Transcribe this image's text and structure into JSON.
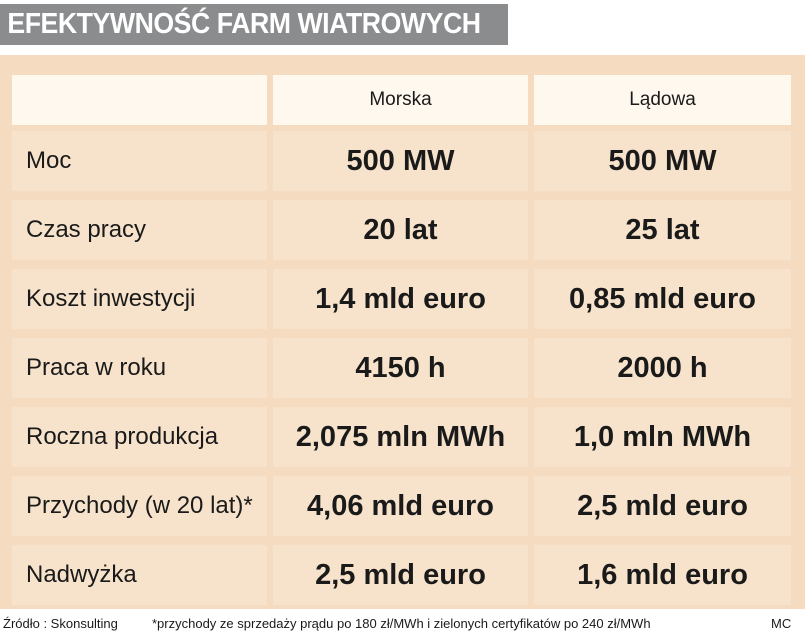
{
  "title": "EFEKTYWNOŚĆ FARM WIATROWYCH",
  "columns": [
    "",
    "Morska",
    "Lądowa"
  ],
  "rows": [
    {
      "label": "Moc",
      "morska": "500 MW",
      "ladowa": "500 MW"
    },
    {
      "label": "Czas pracy",
      "morska": "20 lat",
      "ladowa": "25 lat"
    },
    {
      "label": "Koszt inwestycji",
      "morska": "1,4 mld euro",
      "ladowa": "0,85 mld euro"
    },
    {
      "label": "Praca w roku",
      "morska": "4150 h",
      "ladowa": "2000 h"
    },
    {
      "label": "Roczna produkcja",
      "morska": "2,075 mln MWh",
      "ladowa": "1,0 mln MWh"
    },
    {
      "label": "Przychody (w 20 lat)*",
      "morska": "4,06 mld euro",
      "ladowa": "2,5 mld euro"
    },
    {
      "label": "Nadwyżka",
      "morska": "2,5 mld euro",
      "ladowa": "1,6 mld euro"
    }
  ],
  "footer": {
    "source": "Źródło : Skonsulting",
    "note": "*przychody ze sprzedaży prądu po 180 zł/MWh i zielonych certyfikatów po 240 zł/MWh",
    "author": "MC"
  },
  "colors": {
    "title_bar": "#8a8c8e",
    "panel": "#f5dcc0",
    "cell": "#f7e3cb",
    "header_cell": "#fff8ef"
  }
}
